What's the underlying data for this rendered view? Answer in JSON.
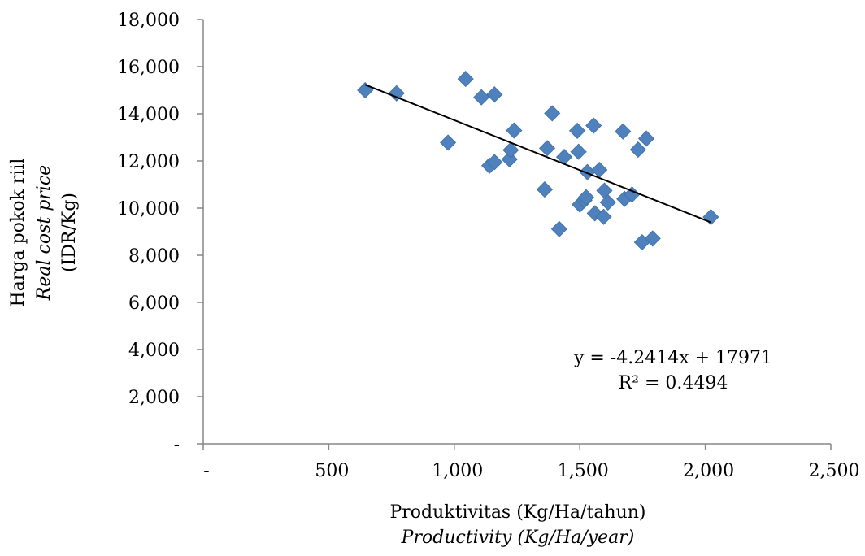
{
  "chart_data": {
    "type": "scatter",
    "title": "",
    "xlabel": "Produktivitas (Kg/Ha/tahun)",
    "xlabel_en": "Productivity (Kg/Ha/year)",
    "ylabel": "Harga pokok riil",
    "ylabel_en": "Real cost price",
    "ylabel_unit": "(IDR/Kg)",
    "xlim": [
      0,
      2500
    ],
    "ylim": [
      0,
      18000
    ],
    "x_ticks": [
      0,
      500,
      1000,
      1500,
      2000,
      2500
    ],
    "x_tick_labels": [
      "-",
      "500",
      "1,000",
      "1,500",
      "2,000",
      "2,500"
    ],
    "y_ticks": [
      0,
      2000,
      4000,
      6000,
      8000,
      10000,
      12000,
      14000,
      16000,
      18000
    ],
    "y_tick_labels": [
      "-",
      "2,000",
      "4,000",
      "6,000",
      "8,000",
      "10,000",
      "12,000",
      "14,000",
      "16,000",
      "18,000"
    ],
    "grid": false,
    "legend": "none",
    "marker_color": "#4f81bd",
    "points": [
      {
        "x": 645,
        "y": 15000
      },
      {
        "x": 770,
        "y": 14870
      },
      {
        "x": 975,
        "y": 12780
      },
      {
        "x": 1045,
        "y": 15480
      },
      {
        "x": 1108,
        "y": 14700
      },
      {
        "x": 1160,
        "y": 14820
      },
      {
        "x": 1140,
        "y": 11800
      },
      {
        "x": 1160,
        "y": 11950
      },
      {
        "x": 1220,
        "y": 12070
      },
      {
        "x": 1225,
        "y": 12460
      },
      {
        "x": 1238,
        "y": 13290
      },
      {
        "x": 1360,
        "y": 10790
      },
      {
        "x": 1370,
        "y": 12540
      },
      {
        "x": 1390,
        "y": 14020
      },
      {
        "x": 1418,
        "y": 9110
      },
      {
        "x": 1438,
        "y": 12170
      },
      {
        "x": 1490,
        "y": 13280
      },
      {
        "x": 1495,
        "y": 12390
      },
      {
        "x": 1500,
        "y": 10150
      },
      {
        "x": 1518,
        "y": 10330
      },
      {
        "x": 1525,
        "y": 10460
      },
      {
        "x": 1530,
        "y": 11530
      },
      {
        "x": 1555,
        "y": 13500
      },
      {
        "x": 1560,
        "y": 9780
      },
      {
        "x": 1578,
        "y": 11620
      },
      {
        "x": 1595,
        "y": 9630
      },
      {
        "x": 1598,
        "y": 10740
      },
      {
        "x": 1612,
        "y": 10240
      },
      {
        "x": 1672,
        "y": 13250
      },
      {
        "x": 1678,
        "y": 10390
      },
      {
        "x": 1708,
        "y": 10580
      },
      {
        "x": 1732,
        "y": 12480
      },
      {
        "x": 1748,
        "y": 8550
      },
      {
        "x": 1765,
        "y": 12950
      },
      {
        "x": 1790,
        "y": 8710
      },
      {
        "x": 2022,
        "y": 9620
      }
    ],
    "trendline": {
      "type": "linear",
      "slope": -4.2414,
      "intercept": 17971,
      "x_range": [
        645,
        2022
      ],
      "equation_label": "y = -4.2414x + 17971",
      "r2_label": "R² = 0.4494"
    }
  }
}
